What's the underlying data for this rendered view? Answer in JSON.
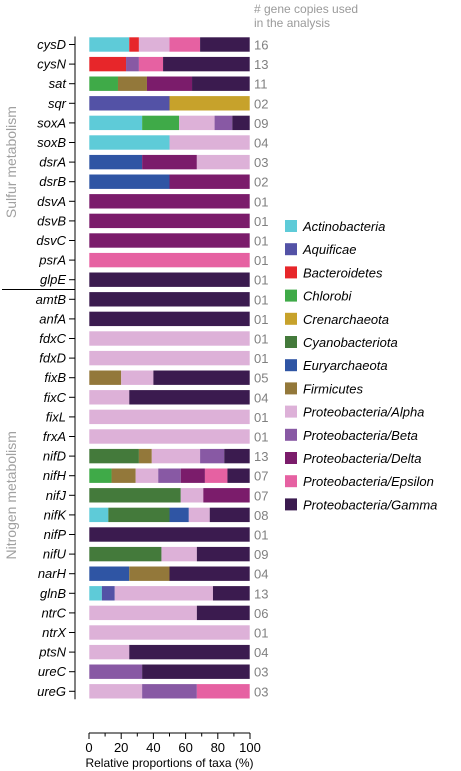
{
  "chart_data": {
    "type": "bar",
    "orientation": "horizontal",
    "stacked": true,
    "normalized": true,
    "title": "",
    "count_header": [
      "# gene copies used",
      "in the analysis"
    ],
    "xlabel": "Relative proportions of taxa (%)",
    "ylabel": "",
    "xlim": [
      0,
      100
    ],
    "xticks": [
      0,
      20,
      40,
      60,
      80,
      100
    ],
    "grid": false,
    "legend_position": "right",
    "groups": [
      {
        "name": "Sulfur metabolism",
        "genes": [
          "cysD",
          "cysN",
          "sat",
          "sqr",
          "soxA",
          "soxB",
          "dsrA",
          "dsrB",
          "dsvA",
          "dsvB",
          "dsvC",
          "psrA",
          "glpE"
        ]
      },
      {
        "name": "Nitrogen metabolism",
        "genes": [
          "amtB",
          "anfA",
          "fdxC",
          "fdxD",
          "fixB",
          "fixC",
          "fixL",
          "frxA",
          "nifD",
          "nifH",
          "nifJ",
          "nifK",
          "nifP",
          "nifU",
          "narH",
          "glnB",
          "ntrC",
          "ntrX",
          "ptsN",
          "ureC",
          "ureG"
        ]
      }
    ],
    "series": [
      {
        "name": "Actinobacteria",
        "color": "#5ecbd8"
      },
      {
        "name": "Aquificae",
        "color": "#5352a6"
      },
      {
        "name": "Bacteroidetes",
        "color": "#e7262a"
      },
      {
        "name": "Chlorobi",
        "color": "#3faa48"
      },
      {
        "name": "Crenarchaeota",
        "color": "#c7a22b"
      },
      {
        "name": "Cyanobacteriota",
        "color": "#447a3b"
      },
      {
        "name": "Euryarchaeota",
        "color": "#2f55a4"
      },
      {
        "name": "Firmicutes",
        "color": "#93783a"
      },
      {
        "name": "Proteobacteria/Alpha",
        "color": "#ddb1d8"
      },
      {
        "name": "Proteobacteria/Beta",
        "color": "#8859a4"
      },
      {
        "name": "Proteobacteria/Delta",
        "color": "#7b1c6b"
      },
      {
        "name": "Proteobacteria/Epsilon",
        "color": "#e661a2"
      },
      {
        "name": "Proteobacteria/Gamma",
        "color": "#3b1b4f"
      }
    ],
    "rows": [
      {
        "gene": "cysD",
        "count": "16",
        "segments": [
          [
            "Actinobacteria",
            25
          ],
          [
            "Bacteroidetes",
            6
          ],
          [
            "Proteobacteria/Alpha",
            19
          ],
          [
            "Proteobacteria/Epsilon",
            19
          ],
          [
            "Proteobacteria/Gamma",
            31
          ]
        ]
      },
      {
        "gene": "cysN",
        "count": "13",
        "segments": [
          [
            "Bacteroidetes",
            23
          ],
          [
            "Proteobacteria/Beta",
            8
          ],
          [
            "Proteobacteria/Epsilon",
            15
          ],
          [
            "Proteobacteria/Gamma",
            54
          ]
        ]
      },
      {
        "gene": "sat",
        "count": "11",
        "segments": [
          [
            "Chlorobi",
            18
          ],
          [
            "Firmicutes",
            18
          ],
          [
            "Proteobacteria/Delta",
            28
          ],
          [
            "Proteobacteria/Gamma",
            36
          ]
        ]
      },
      {
        "gene": "sqr",
        "count": "02",
        "segments": [
          [
            "Aquificae",
            50
          ],
          [
            "Crenarchaeota",
            50
          ]
        ]
      },
      {
        "gene": "soxA",
        "count": "09",
        "segments": [
          [
            "Actinobacteria",
            33
          ],
          [
            "Chlorobi",
            23
          ],
          [
            "Proteobacteria/Alpha",
            22
          ],
          [
            "Proteobacteria/Beta",
            11
          ],
          [
            "Proteobacteria/Gamma",
            11
          ]
        ]
      },
      {
        "gene": "soxB",
        "count": "04",
        "segments": [
          [
            "Actinobacteria",
            50
          ],
          [
            "Proteobacteria/Alpha",
            50
          ]
        ]
      },
      {
        "gene": "dsrA",
        "count": "03",
        "segments": [
          [
            "Euryarchaeota",
            33
          ],
          [
            "Proteobacteria/Delta",
            34
          ],
          [
            "Proteobacteria/Alpha",
            33
          ]
        ]
      },
      {
        "gene": "dsrB",
        "count": "02",
        "segments": [
          [
            "Euryarchaeota",
            50
          ],
          [
            "Proteobacteria/Delta",
            50
          ]
        ]
      },
      {
        "gene": "dsvA",
        "count": "01",
        "segments": [
          [
            "Proteobacteria/Delta",
            100
          ]
        ]
      },
      {
        "gene": "dsvB",
        "count": "01",
        "segments": [
          [
            "Proteobacteria/Delta",
            100
          ]
        ]
      },
      {
        "gene": "dsvC",
        "count": "01",
        "segments": [
          [
            "Proteobacteria/Delta",
            100
          ]
        ]
      },
      {
        "gene": "psrA",
        "count": "01",
        "segments": [
          [
            "Proteobacteria/Epsilon",
            100
          ]
        ]
      },
      {
        "gene": "glpE",
        "count": "01",
        "segments": [
          [
            "Proteobacteria/Gamma",
            100
          ]
        ]
      },
      {
        "gene": "amtB",
        "count": "01",
        "segments": [
          [
            "Proteobacteria/Gamma",
            100
          ]
        ]
      },
      {
        "gene": "anfA",
        "count": "01",
        "segments": [
          [
            "Proteobacteria/Gamma",
            100
          ]
        ]
      },
      {
        "gene": "fdxC",
        "count": "01",
        "segments": [
          [
            "Proteobacteria/Alpha",
            100
          ]
        ]
      },
      {
        "gene": "fdxD",
        "count": "01",
        "segments": [
          [
            "Proteobacteria/Alpha",
            100
          ]
        ]
      },
      {
        "gene": "fixB",
        "count": "05",
        "segments": [
          [
            "Firmicutes",
            20
          ],
          [
            "Proteobacteria/Alpha",
            20
          ],
          [
            "Proteobacteria/Gamma",
            60
          ]
        ]
      },
      {
        "gene": "fixC",
        "count": "04",
        "segments": [
          [
            "Proteobacteria/Alpha",
            25
          ],
          [
            "Proteobacteria/Gamma",
            75
          ]
        ]
      },
      {
        "gene": "fixL",
        "count": "01",
        "segments": [
          [
            "Proteobacteria/Alpha",
            100
          ]
        ]
      },
      {
        "gene": "frxA",
        "count": "01",
        "segments": [
          [
            "Proteobacteria/Alpha",
            100
          ]
        ]
      },
      {
        "gene": "nifD",
        "count": "13",
        "segments": [
          [
            "Cyanobacteriota",
            31
          ],
          [
            "Firmicutes",
            8
          ],
          [
            "Proteobacteria/Alpha",
            30
          ],
          [
            "Proteobacteria/Beta",
            15
          ],
          [
            "Proteobacteria/Gamma",
            16
          ]
        ]
      },
      {
        "gene": "nifH",
        "count": "07",
        "segments": [
          [
            "Chlorobi",
            14
          ],
          [
            "Firmicutes",
            15
          ],
          [
            "Proteobacteria/Alpha",
            14
          ],
          [
            "Proteobacteria/Beta",
            14
          ],
          [
            "Proteobacteria/Delta",
            15
          ],
          [
            "Proteobacteria/Epsilon",
            14
          ],
          [
            "Proteobacteria/Gamma",
            14
          ]
        ]
      },
      {
        "gene": "nifJ",
        "count": "07",
        "segments": [
          [
            "Cyanobacteriota",
            57
          ],
          [
            "Proteobacteria/Alpha",
            14
          ],
          [
            "Proteobacteria/Delta",
            29
          ]
        ]
      },
      {
        "gene": "nifK",
        "count": "08",
        "segments": [
          [
            "Actinobacteria",
            12
          ],
          [
            "Cyanobacteriota",
            38
          ],
          [
            "Euryarchaeota",
            12
          ],
          [
            "Proteobacteria/Alpha",
            13
          ],
          [
            "Proteobacteria/Gamma",
            25
          ]
        ]
      },
      {
        "gene": "nifP",
        "count": "01",
        "segments": [
          [
            "Proteobacteria/Gamma",
            100
          ]
        ]
      },
      {
        "gene": "nifU",
        "count": "09",
        "segments": [
          [
            "Cyanobacteriota",
            45
          ],
          [
            "Proteobacteria/Alpha",
            22
          ],
          [
            "Proteobacteria/Gamma",
            33
          ]
        ]
      },
      {
        "gene": "narH",
        "count": "04",
        "segments": [
          [
            "Euryarchaeota",
            25
          ],
          [
            "Firmicutes",
            25
          ],
          [
            "Proteobacteria/Gamma",
            50
          ]
        ]
      },
      {
        "gene": "glnB",
        "count": "13",
        "segments": [
          [
            "Actinobacteria",
            8
          ],
          [
            "Aquificae",
            8
          ],
          [
            "Proteobacteria/Alpha",
            61
          ],
          [
            "Proteobacteria/Gamma",
            23
          ]
        ]
      },
      {
        "gene": "ntrC",
        "count": "06",
        "segments": [
          [
            "Proteobacteria/Alpha",
            67
          ],
          [
            "Proteobacteria/Gamma",
            33
          ]
        ]
      },
      {
        "gene": "ntrX",
        "count": "01",
        "segments": [
          [
            "Proteobacteria/Alpha",
            100
          ]
        ]
      },
      {
        "gene": "ptsN",
        "count": "04",
        "segments": [
          [
            "Proteobacteria/Alpha",
            25
          ],
          [
            "Proteobacteria/Gamma",
            75
          ]
        ]
      },
      {
        "gene": "ureC",
        "count": "03",
        "segments": [
          [
            "Proteobacteria/Beta",
            33
          ],
          [
            "Proteobacteria/Gamma",
            67
          ]
        ]
      },
      {
        "gene": "ureG",
        "count": "03",
        "segments": [
          [
            "Proteobacteria/Alpha",
            33
          ],
          [
            "Proteobacteria/Beta",
            34
          ],
          [
            "Proteobacteria/Epsilon",
            33
          ]
        ]
      }
    ]
  }
}
